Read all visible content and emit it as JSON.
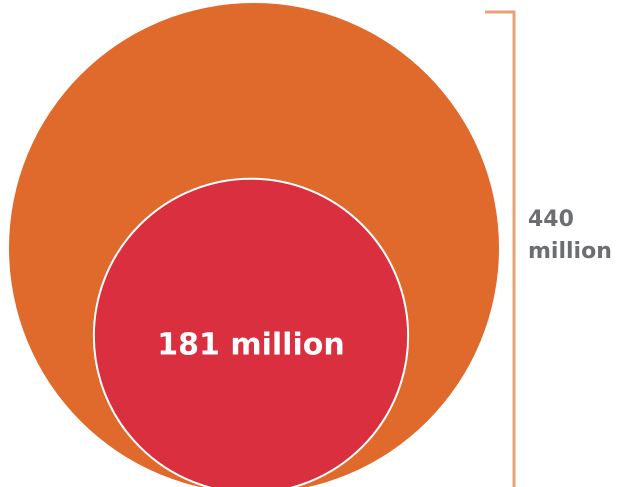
{
  "chart_data": {
    "type": "bubble",
    "series": [
      {
        "value": 440,
        "label": "440 million",
        "label_lines": [
          "440",
          "million"
        ],
        "color": "#e06a2c"
      },
      {
        "value": 181,
        "label": "181 million",
        "label_lines": [
          "181 million"
        ],
        "color": "#d92f3f"
      }
    ],
    "bracket_color": "#e9a278",
    "side_label_color": "#6d6e71",
    "inner_label_color": "#ffffff",
    "nested": true
  }
}
